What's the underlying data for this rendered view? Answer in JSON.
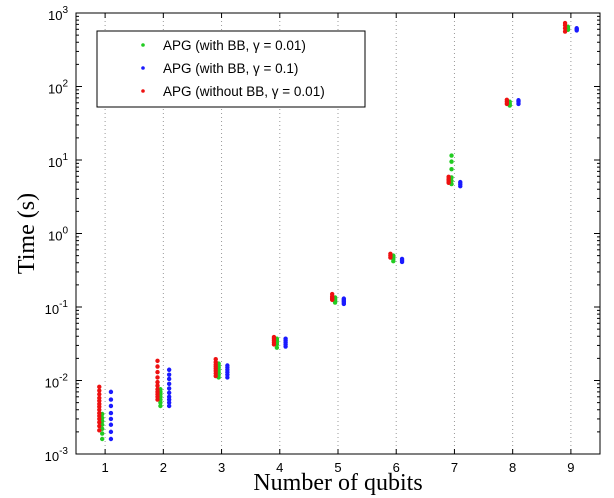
{
  "chart_data": {
    "type": "scatter",
    "xlabel": "Number of qubits",
    "ylabel": "Time (s)",
    "y_scale": "log",
    "xlim": [
      0.5,
      9.5
    ],
    "ylim": [
      0.001,
      1000
    ],
    "x_ticks": [
      "1",
      "2",
      "3",
      "4",
      "5",
      "6",
      "7",
      "8",
      "9"
    ],
    "y_ticks": [
      {
        "value": 0.001,
        "base": "10",
        "exp": "-3"
      },
      {
        "value": 0.01,
        "base": "10",
        "exp": "-2"
      },
      {
        "value": 0.1,
        "base": "10",
        "exp": "-1"
      },
      {
        "value": 1,
        "base": "10",
        "exp": "0"
      },
      {
        "value": 10,
        "base": "10",
        "exp": "1"
      },
      {
        "value": 100,
        "base": "10",
        "exp": "2"
      },
      {
        "value": 1000,
        "base": "10",
        "exp": "3"
      }
    ],
    "grid": "vertical dotted",
    "legend_position": "top-left",
    "series": [
      {
        "name": "APG (with BB, γ = 0.01)",
        "color": "#22cc22",
        "points": [
          [
            1,
            0.0016
          ],
          [
            1,
            0.0019
          ],
          [
            1,
            0.0022
          ],
          [
            1,
            0.0025
          ],
          [
            1,
            0.0028
          ],
          [
            1,
            0.0031
          ],
          [
            1,
            0.0035
          ],
          [
            2,
            0.0045
          ],
          [
            2,
            0.005
          ],
          [
            2,
            0.0055
          ],
          [
            2,
            0.006
          ],
          [
            2,
            0.0065
          ],
          [
            2,
            0.007
          ],
          [
            2,
            0.0076
          ],
          [
            3,
            0.011
          ],
          [
            3,
            0.012
          ],
          [
            3,
            0.013
          ],
          [
            3,
            0.014
          ],
          [
            3,
            0.015
          ],
          [
            3,
            0.016
          ],
          [
            3,
            0.017
          ],
          [
            4,
            0.028
          ],
          [
            4,
            0.031
          ],
          [
            4,
            0.033
          ],
          [
            4,
            0.035
          ],
          [
            4,
            0.037
          ],
          [
            5,
            0.115
          ],
          [
            5,
            0.12
          ],
          [
            5,
            0.125
          ],
          [
            5,
            0.13
          ],
          [
            5,
            0.135
          ],
          [
            6,
            0.42
          ],
          [
            6,
            0.45
          ],
          [
            6,
            0.48
          ],
          [
            6,
            0.5
          ],
          [
            7,
            4.7
          ],
          [
            7,
            5.2
          ],
          [
            7,
            5.8
          ],
          [
            7,
            7.5
          ],
          [
            7,
            9.5
          ],
          [
            7,
            11.5
          ],
          [
            8,
            55
          ],
          [
            8,
            58
          ],
          [
            8,
            62
          ],
          [
            9,
            590
          ],
          [
            9,
            620
          ],
          [
            9,
            650
          ]
        ]
      },
      {
        "name": "APG (with BB, γ = 0.1)",
        "color": "#1a1aff",
        "points": [
          [
            1,
            0.0016
          ],
          [
            1,
            0.002
          ],
          [
            1,
            0.0025
          ],
          [
            1,
            0.003
          ],
          [
            1,
            0.0036
          ],
          [
            1,
            0.0045
          ],
          [
            1,
            0.0055
          ],
          [
            1,
            0.007
          ],
          [
            2,
            0.0045
          ],
          [
            2,
            0.005
          ],
          [
            2,
            0.0055
          ],
          [
            2,
            0.006
          ],
          [
            2,
            0.0068
          ],
          [
            2,
            0.0078
          ],
          [
            2,
            0.009
          ],
          [
            2,
            0.0105
          ],
          [
            2,
            0.012
          ],
          [
            2,
            0.014
          ],
          [
            3,
            0.011
          ],
          [
            3,
            0.012
          ],
          [
            3,
            0.013
          ],
          [
            3,
            0.014
          ],
          [
            3,
            0.015
          ],
          [
            3,
            0.016
          ],
          [
            4,
            0.029
          ],
          [
            4,
            0.031
          ],
          [
            4,
            0.033
          ],
          [
            4,
            0.035
          ],
          [
            4,
            0.037
          ],
          [
            5,
            0.11
          ],
          [
            5,
            0.115
          ],
          [
            5,
            0.12
          ],
          [
            5,
            0.125
          ],
          [
            5,
            0.13
          ],
          [
            6,
            0.41
          ],
          [
            6,
            0.43
          ],
          [
            6,
            0.45
          ],
          [
            7,
            4.4
          ],
          [
            7,
            4.7
          ],
          [
            7,
            5.0
          ],
          [
            8,
            58
          ],
          [
            8,
            62
          ],
          [
            8,
            65
          ],
          [
            9,
            580
          ],
          [
            9,
            600
          ],
          [
            9,
            620
          ]
        ]
      },
      {
        "name": "APG (without BB, γ = 0.01)",
        "color": "#ee1111",
        "points": [
          [
            1,
            0.0021
          ],
          [
            1,
            0.0024
          ],
          [
            1,
            0.0027
          ],
          [
            1,
            0.003
          ],
          [
            1,
            0.0033
          ],
          [
            1,
            0.0036
          ],
          [
            1,
            0.004
          ],
          [
            1,
            0.0044
          ],
          [
            1,
            0.0048
          ],
          [
            1,
            0.0053
          ],
          [
            1,
            0.0058
          ],
          [
            1,
            0.0065
          ],
          [
            1,
            0.0073
          ],
          [
            1,
            0.0082
          ],
          [
            2,
            0.0055
          ],
          [
            2,
            0.006
          ],
          [
            2,
            0.0065
          ],
          [
            2,
            0.007
          ],
          [
            2,
            0.0076
          ],
          [
            2,
            0.0085
          ],
          [
            2,
            0.0095
          ],
          [
            2,
            0.011
          ],
          [
            2,
            0.013
          ],
          [
            2,
            0.0155
          ],
          [
            2,
            0.0185
          ],
          [
            3,
            0.0115
          ],
          [
            3,
            0.0125
          ],
          [
            3,
            0.0135
          ],
          [
            3,
            0.0145
          ],
          [
            3,
            0.0155
          ],
          [
            3,
            0.0165
          ],
          [
            3,
            0.0178
          ],
          [
            3,
            0.0195
          ],
          [
            4,
            0.031
          ],
          [
            4,
            0.033
          ],
          [
            4,
            0.035
          ],
          [
            4,
            0.037
          ],
          [
            4,
            0.039
          ],
          [
            5,
            0.125
          ],
          [
            5,
            0.13
          ],
          [
            5,
            0.135
          ],
          [
            5,
            0.14
          ],
          [
            5,
            0.15
          ],
          [
            6,
            0.47
          ],
          [
            6,
            0.5
          ],
          [
            6,
            0.53
          ],
          [
            7,
            4.9
          ],
          [
            7,
            5.2
          ],
          [
            7,
            5.5
          ],
          [
            7,
            5.9
          ],
          [
            8,
            58
          ],
          [
            8,
            62
          ],
          [
            8,
            66
          ],
          [
            9,
            560
          ],
          [
            9,
            620
          ],
          [
            9,
            680
          ],
          [
            9,
            730
          ]
        ]
      }
    ]
  }
}
